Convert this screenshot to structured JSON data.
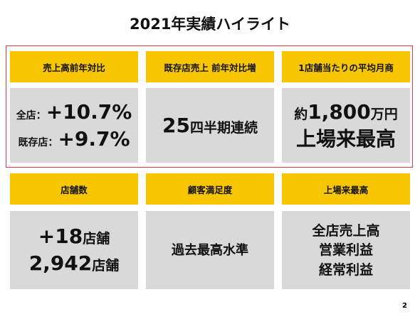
{
  "title": "2021年実績ハイライト",
  "page_number": "2",
  "cards": [
    {
      "header": "売上高前年対比",
      "lines": [
        [
          "全店：",
          "+10.7%"
        ],
        [
          "既存店：",
          "+9.7%"
        ]
      ]
    },
    {
      "header": "既存店売上 前年対比増",
      "lines": [
        [
          "25",
          "四半期連続"
        ]
      ]
    },
    {
      "header": "1店舗当たりの平均月商",
      "lines": [
        [
          "約",
          "1,800",
          "万円"
        ],
        [
          "上場来最高"
        ]
      ]
    },
    {
      "header": "店舗数",
      "lines": [
        [
          "+18",
          "店舗"
        ],
        [
          "2,942",
          "店舗"
        ]
      ]
    },
    {
      "header": "顧客満足度",
      "lines": [
        [
          "過去最高水準"
        ]
      ]
    },
    {
      "header": "上場来最高",
      "lines": [
        [
          "全店売上高"
        ],
        [
          "営業利益"
        ],
        [
          "経常利益"
        ]
      ]
    }
  ]
}
